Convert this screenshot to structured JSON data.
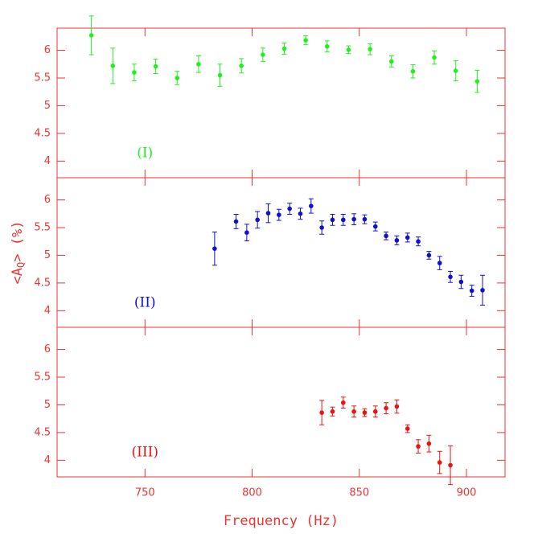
{
  "chart_data": [
    {
      "type": "scatter",
      "label": "(I)",
      "color": "#22ee22",
      "x": [
        725,
        735,
        745,
        755,
        765,
        775,
        785,
        795,
        805,
        815,
        825,
        835,
        845,
        855,
        865,
        875,
        885,
        895,
        905
      ],
      "values": [
        6.27,
        5.72,
        5.6,
        5.71,
        5.5,
        5.75,
        5.55,
        5.72,
        5.92,
        6.03,
        6.18,
        6.07,
        6.01,
        6.02,
        5.8,
        5.62,
        5.87,
        5.63,
        5.44
      ],
      "errors": [
        0.35,
        0.32,
        0.15,
        0.13,
        0.12,
        0.15,
        0.2,
        0.13,
        0.12,
        0.1,
        0.08,
        0.1,
        0.07,
        0.1,
        0.1,
        0.12,
        0.12,
        0.18,
        0.2
      ],
      "xlim": [
        709,
        918
      ],
      "ylim": [
        3.7,
        6.4
      ],
      "xticks": [
        750,
        800,
        850,
        900
      ],
      "yticks": [
        4,
        4.5,
        5,
        5.5,
        6
      ]
    },
    {
      "type": "scatter",
      "label": "(II)",
      "color": "#1111cc",
      "ylabel": {
        "text": "<A",
        "subscript": "Q",
        "suffix": "> (%)"
      },
      "x": [
        782.5,
        792.5,
        797.5,
        802.5,
        807.5,
        812.5,
        817.5,
        822.5,
        827.5,
        832.5,
        837.5,
        842.5,
        847.5,
        852.5,
        857.5,
        862.5,
        867.5,
        872.5,
        877.5,
        882.5,
        887.5,
        892.5,
        897.5,
        902.5,
        907.5
      ],
      "values": [
        5.12,
        5.61,
        5.41,
        5.64,
        5.76,
        5.73,
        5.84,
        5.75,
        5.89,
        5.5,
        5.64,
        5.64,
        5.65,
        5.65,
        5.52,
        5.35,
        5.27,
        5.32,
        5.25,
        5.0,
        4.86,
        4.61,
        4.52,
        4.36,
        4.37
      ],
      "errors": [
        0.3,
        0.13,
        0.15,
        0.15,
        0.17,
        0.1,
        0.1,
        0.1,
        0.13,
        0.12,
        0.1,
        0.1,
        0.1,
        0.08,
        0.08,
        0.07,
        0.08,
        0.08,
        0.08,
        0.07,
        0.12,
        0.1,
        0.12,
        0.1,
        0.27
      ],
      "xlim": [
        709,
        918
      ],
      "ylim": [
        3.7,
        6.4
      ],
      "xticks": [
        750,
        800,
        850,
        900
      ],
      "yticks": [
        4,
        4.5,
        5,
        5.5,
        6
      ]
    },
    {
      "type": "scatter",
      "label": "(III)",
      "color": "#ee1111",
      "xlabel": "Frequency (Hz)",
      "x": [
        832.5,
        837.5,
        842.5,
        847.5,
        852.5,
        857.5,
        862.5,
        867.5,
        872.5,
        877.5,
        882.5,
        887.5,
        892.5
      ],
      "values": [
        4.86,
        4.88,
        5.04,
        4.88,
        4.86,
        4.88,
        4.94,
        4.97,
        4.57,
        4.25,
        4.3,
        3.96,
        3.91
      ],
      "errors": [
        0.22,
        0.08,
        0.1,
        0.1,
        0.07,
        0.1,
        0.1,
        0.12,
        0.07,
        0.12,
        0.15,
        0.2,
        0.35
      ],
      "xlim": [
        709,
        918
      ],
      "ylim": [
        3.7,
        6.4
      ],
      "xticks": [
        750,
        800,
        850,
        900
      ],
      "yticks": [
        4,
        4.5,
        5,
        5.5,
        6
      ]
    }
  ]
}
